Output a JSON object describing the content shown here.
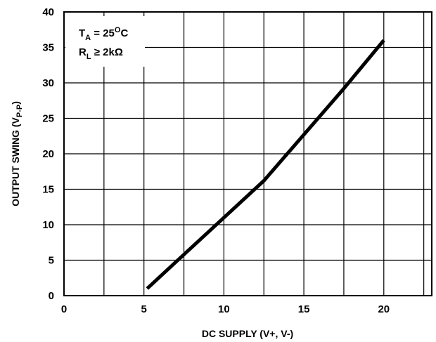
{
  "chart_data": {
    "type": "line",
    "xlabel": "DC SUPPLY (V+, V-)",
    "ylabel": {
      "main": "OUTPUT SWING (V",
      "sub": "P-P",
      "close": ")"
    },
    "xlim": [
      0,
      23
    ],
    "ylim": [
      0,
      40
    ],
    "x_ticks": [
      0,
      5,
      10,
      15,
      20
    ],
    "y_ticks": [
      0,
      5,
      10,
      15,
      20,
      25,
      30,
      35,
      40
    ],
    "grid": true,
    "series": [
      {
        "color": "#000000",
        "x": [
          5.2,
          7.5,
          10,
          12.5,
          15,
          17.5,
          20
        ],
        "y": [
          1,
          5.8,
          11,
          16.2,
          22.7,
          29.2,
          36
        ]
      }
    ],
    "annotations": {
      "ta": {
        "main": "T",
        "sub": "A",
        "rest": " = 25",
        "sup": "O",
        "end": "C"
      },
      "rl": {
        "main": "R",
        "sub": "L",
        "rest": " ≥ 2kΩ"
      }
    }
  }
}
